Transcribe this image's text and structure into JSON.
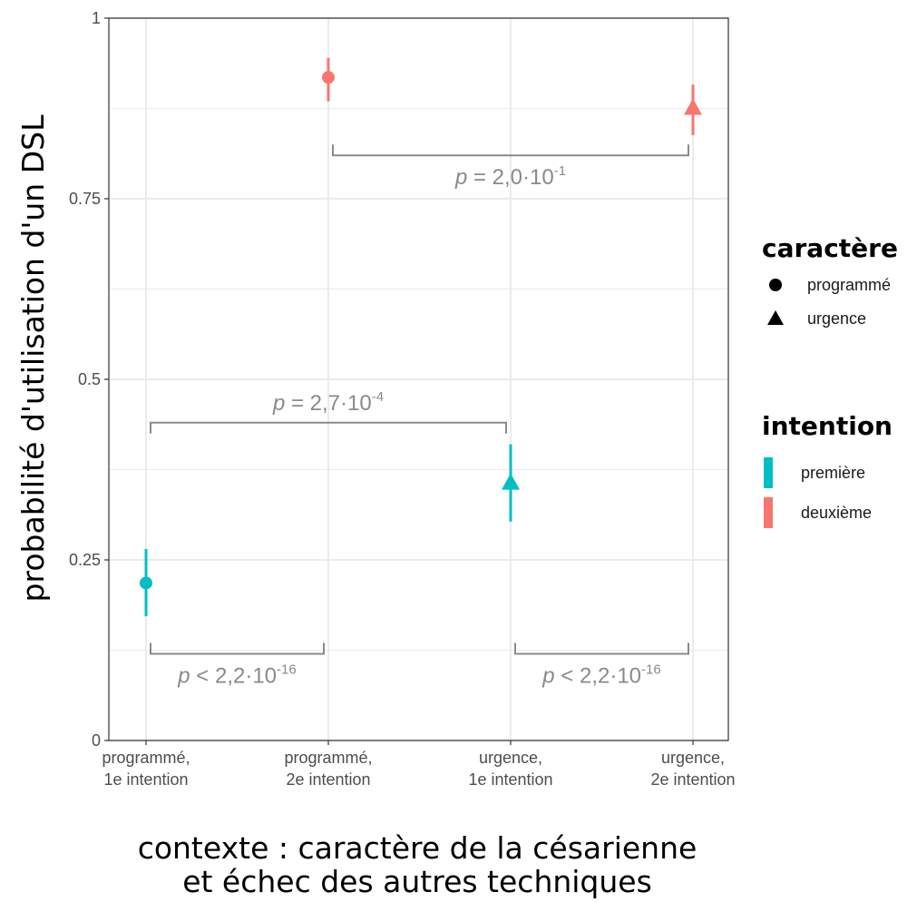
{
  "chart_data": {
    "type": "scatter",
    "xlabel": [
      "contexte : caractère de la césarienne",
      "et échec des autres techniques"
    ],
    "ylabel": "probabilité d'utilisation d'un DSL",
    "ylim": [
      0,
      1
    ],
    "yticks": [
      0,
      0.25,
      0.5,
      0.75,
      1
    ],
    "ytick_labels": [
      "0",
      "0.25",
      "0.5",
      "0.75",
      "1"
    ],
    "grid": true,
    "legend_placement": "right",
    "categories": [
      [
        "programmé,",
        "1e intention"
      ],
      [
        "programmé,",
        "2e intention"
      ],
      [
        "urgence,",
        "1e intention"
      ],
      [
        "urgence,",
        "2e intention"
      ]
    ],
    "points": [
      {
        "category": 0,
        "y": 0.218,
        "ymin": 0.172,
        "ymax": 0.265,
        "caractere": "programmé",
        "intention": "première"
      },
      {
        "category": 1,
        "y": 0.918,
        "ymin": 0.885,
        "ymax": 0.945,
        "caractere": "programmé",
        "intention": "deuxième"
      },
      {
        "category": 2,
        "y": 0.356,
        "ymin": 0.303,
        "ymax": 0.41,
        "caractere": "urgence",
        "intention": "première"
      },
      {
        "category": 3,
        "y": 0.875,
        "ymin": 0.838,
        "ymax": 0.908,
        "caractere": "urgence",
        "intention": "deuxième"
      }
    ],
    "legends": [
      {
        "title": "caractère",
        "entries": [
          {
            "label": "programmé",
            "shape": "circle"
          },
          {
            "label": "urgence",
            "shape": "triangle"
          }
        ]
      },
      {
        "title": "intention",
        "entries": [
          {
            "label": "première",
            "color": "#00BFC4"
          },
          {
            "label": "deuxième",
            "color": "#F8766D"
          }
        ]
      }
    ],
    "annotations": [
      {
        "from": 0,
        "to": 1,
        "y": 0.12,
        "direction": "down",
        "op": "<",
        "value": "2,2·10",
        "exp": "-16"
      },
      {
        "from": 2,
        "to": 3,
        "y": 0.12,
        "direction": "down",
        "op": "<",
        "value": "2,2·10",
        "exp": "-16"
      },
      {
        "from": 0,
        "to": 2,
        "y": 0.44,
        "direction": "up",
        "op": "=",
        "value": "2,7·10",
        "exp": "-4"
      },
      {
        "from": 1,
        "to": 3,
        "y": 0.81,
        "direction": "down",
        "op": "=",
        "value": "2,0·10",
        "exp": "-1"
      }
    ],
    "colors": {
      "première": "#00BFC4",
      "deuxième": "#F8766D",
      "annotation": "#8a8a8a",
      "panel_border": "#333333",
      "grid": "#ebebeb"
    }
  }
}
